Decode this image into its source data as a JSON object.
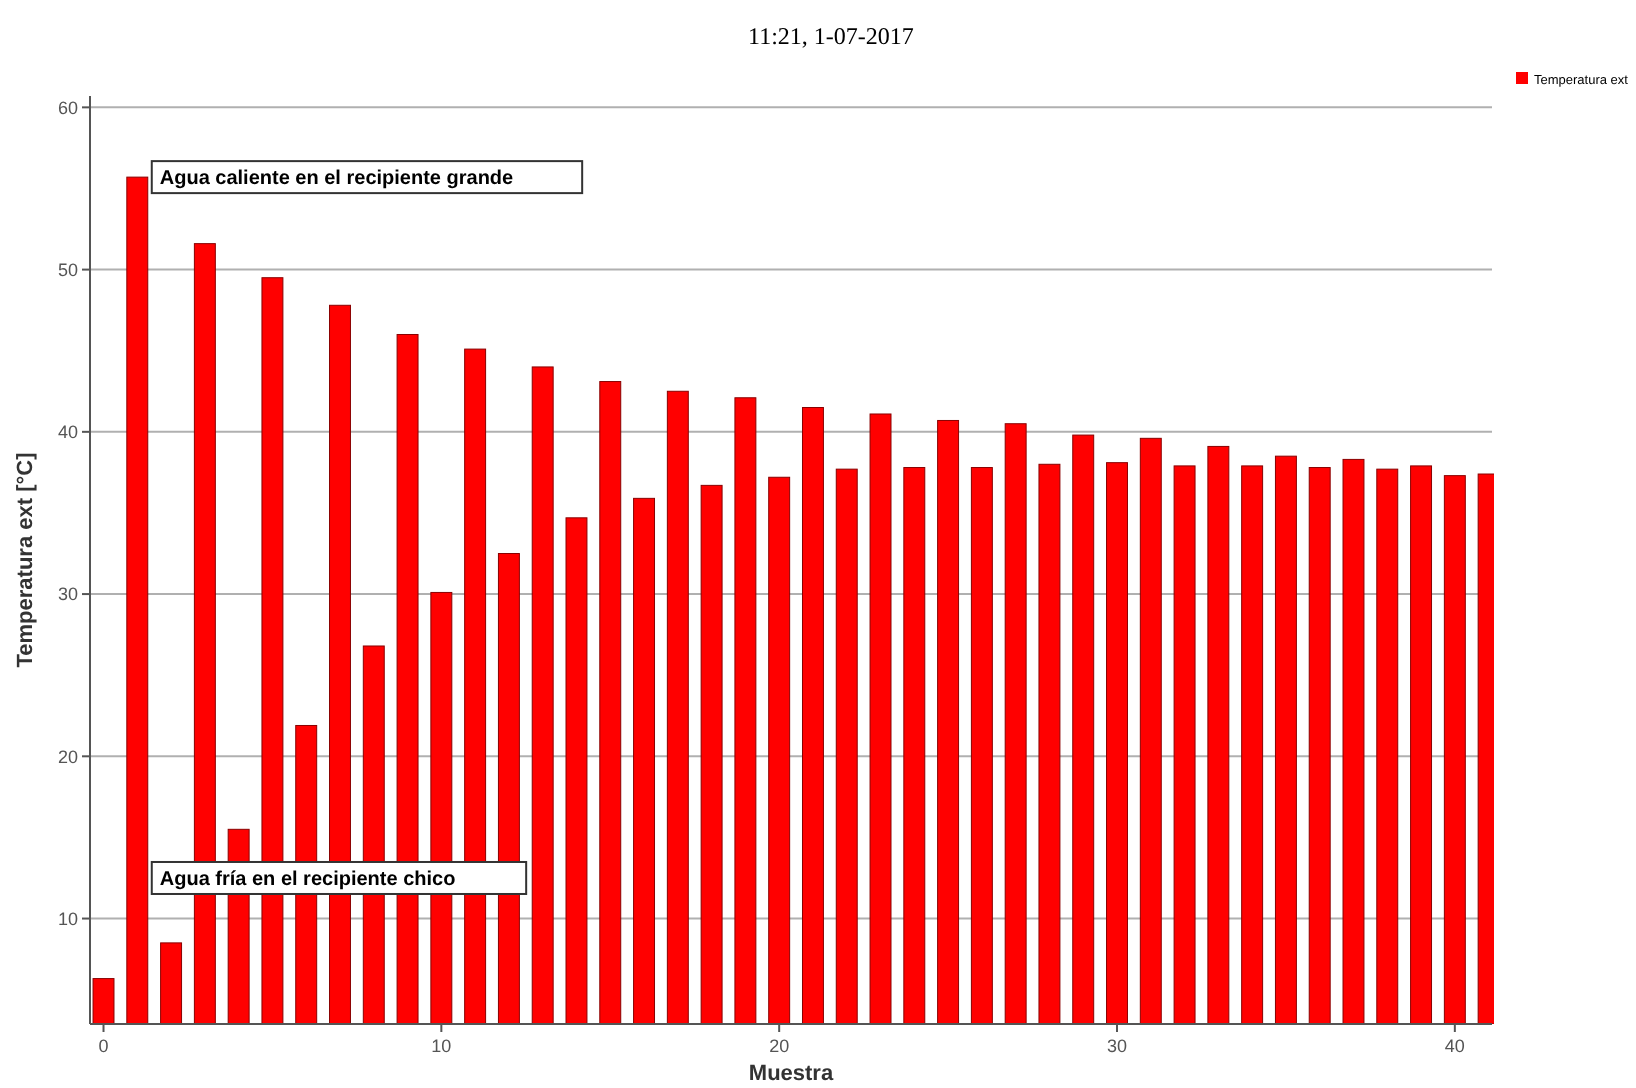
{
  "chart_data": {
    "type": "bar",
    "title": "11:21, 1-07-2017",
    "xlabel": "Muestra",
    "ylabel": "Temperatura ext [°C]",
    "x": [
      0,
      1,
      2,
      3,
      4,
      5,
      6,
      7,
      8,
      9,
      10,
      11,
      12,
      13,
      14,
      15,
      16,
      17,
      18,
      19,
      20,
      21,
      22,
      23,
      24,
      25,
      26,
      27,
      28,
      29,
      30,
      31,
      32,
      33,
      34,
      35,
      36,
      37,
      38,
      39,
      40,
      41
    ],
    "series": [
      {
        "name": "Temperatura ext",
        "color": "#ff0000",
        "values": [
          6.3,
          55.7,
          8.5,
          51.6,
          15.5,
          49.5,
          21.9,
          47.8,
          26.8,
          46.0,
          30.1,
          45.1,
          32.5,
          44.0,
          34.7,
          43.1,
          35.9,
          42.5,
          36.7,
          42.1,
          37.2,
          41.5,
          37.7,
          41.1,
          37.8,
          40.7,
          37.8,
          40.5,
          38.0,
          39.8,
          38.1,
          39.6,
          37.9,
          39.1,
          37.9,
          38.5,
          37.8,
          38.3,
          37.7,
          37.9,
          37.3,
          37.4
        ]
      }
    ],
    "xlim": [
      -0.4,
      41.1
    ],
    "ylim": [
      3.5,
      60.7
    ],
    "xticks": [
      0,
      10,
      20,
      30,
      40
    ],
    "yticks": [
      10,
      20,
      30,
      40,
      50,
      60
    ],
    "grid": "y",
    "legend": "top right",
    "annotations": [
      {
        "text": "Agua caliente en el recipiente grande",
        "x": 1,
        "y": 55.7
      },
      {
        "text": "Agua fría en el recipiente chico",
        "x": 1,
        "y": 12.5
      }
    ]
  }
}
